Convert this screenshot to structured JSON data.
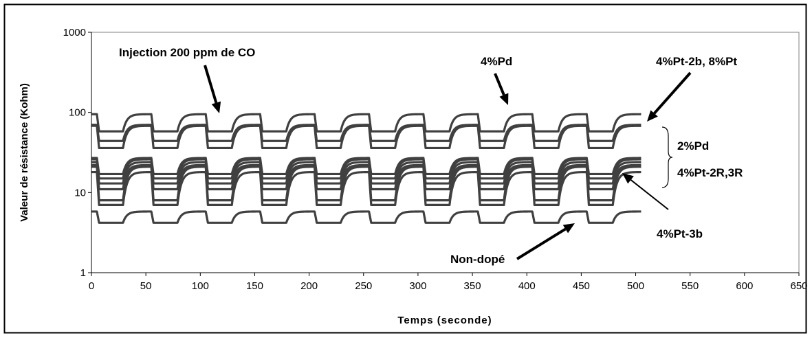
{
  "chart_data": {
    "type": "line",
    "title": "",
    "xlabel": "Temps (seconde)",
    "ylabel": "Valeur de résistance (Kohm)",
    "xlim": [
      0,
      650
    ],
    "ylim": [
      1,
      1000
    ],
    "yscale": "log",
    "x_ticks": [
      "0",
      "50",
      "100",
      "150",
      "200",
      "250",
      "300",
      "350",
      "400",
      "450",
      "500",
      "550",
      "600",
      "650"
    ],
    "y_ticks": [
      "1",
      "10",
      "100",
      "1000"
    ],
    "grid": false,
    "legend": "none",
    "line_color": "#404040",
    "pulse": {
      "period_s": 50,
      "first_injection_s": 5,
      "last_time_s": 505,
      "rise_delay_s": 24
    },
    "series": [
      {
        "high": 95,
        "low": 58
      },
      {
        "high": 70,
        "low": 44
      },
      {
        "high": 68,
        "low": 36
      },
      {
        "high": 27,
        "low": 17
      },
      {
        "high": 26,
        "low": 15
      },
      {
        "high": 24,
        "low": 13
      },
      {
        "high": 22,
        "low": 11
      },
      {
        "high": 21,
        "low": 8
      },
      {
        "high": 18,
        "low": 7
      },
      {
        "high": 5.8,
        "low": 4.2
      }
    ],
    "annotations": [
      {
        "label": "Injection 200 ppm de CO"
      },
      {
        "label": "4%Pd"
      },
      {
        "label": "4%Pt-2b, 8%Pt"
      },
      {
        "label": "2%Pd"
      },
      {
        "label": "4%Pt-2R,3R"
      },
      {
        "label": "4%Pt-3b"
      },
      {
        "label": "Non-dopé"
      }
    ]
  }
}
